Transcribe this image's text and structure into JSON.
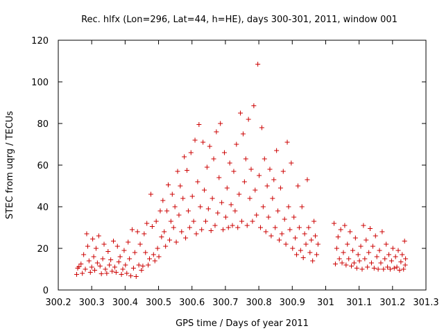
{
  "chart_data": {
    "type": "scatter",
    "title": "Rec. hlfx (Lon=296, Lat=44, h=HE), days 300-301, 2011, window 001",
    "xlabel": "GPS time / Days of year 2011",
    "ylabel": "STEC from uqrg / TECUs",
    "xlim": [
      300.2,
      301.3
    ],
    "ylim": [
      0,
      120
    ],
    "xticks": [
      300.2,
      300.3,
      300.4,
      300.5,
      300.6,
      300.7,
      300.8,
      300.9,
      301.0,
      301.1,
      301.2,
      301.3
    ],
    "xtick_labels": [
      "300.2",
      "300.3",
      "300.4",
      "300.5",
      "300.6",
      "300.7",
      "300.8",
      "300.9",
      "301",
      "301.1",
      "301.2",
      "301.3"
    ],
    "yticks": [
      0,
      20,
      40,
      60,
      80,
      100,
      120
    ],
    "ytick_labels": [
      "0",
      "20",
      "40",
      "60",
      "80",
      "100",
      "120"
    ],
    "grid": false,
    "marker": "+",
    "marker_color": "#cc0000",
    "series": [
      {
        "name": "STEC",
        "points": [
          [
            300.255,
            7.5
          ],
          [
            300.258,
            10.5
          ],
          [
            300.262,
            11.2
          ],
          [
            300.268,
            12.5
          ],
          [
            300.272,
            8.0
          ],
          [
            300.276,
            17.0
          ],
          [
            300.281,
            10.0
          ],
          [
            300.285,
            27.0
          ],
          [
            300.288,
            21.0
          ],
          [
            300.292,
            14.0
          ],
          [
            300.296,
            8.5
          ],
          [
            300.3,
            11.0
          ],
          [
            300.303,
            24.5
          ],
          [
            300.306,
            16.0
          ],
          [
            300.309,
            9.5
          ],
          [
            300.313,
            20.0
          ],
          [
            300.317,
            13.0
          ],
          [
            300.321,
            26.0
          ],
          [
            300.325,
            11.5
          ],
          [
            300.329,
            7.8
          ],
          [
            300.333,
            15.0
          ],
          [
            300.337,
            22.0
          ],
          [
            300.341,
            10.0
          ],
          [
            300.345,
            8.0
          ],
          [
            300.349,
            18.5
          ],
          [
            300.353,
            12.0
          ],
          [
            300.357,
            14.5
          ],
          [
            300.361,
            9.0
          ],
          [
            300.365,
            23.5
          ],
          [
            300.369,
            11.0
          ],
          [
            300.373,
            8.5
          ],
          [
            300.377,
            21.0
          ],
          [
            300.381,
            13.5
          ],
          [
            300.385,
            16.0
          ],
          [
            300.389,
            7.5
          ],
          [
            300.393,
            10.0
          ],
          [
            300.397,
            19.0
          ],
          [
            300.401,
            12.0
          ],
          [
            300.405,
            8.0
          ],
          [
            300.409,
            23.0
          ],
          [
            300.413,
            15.0
          ],
          [
            300.417,
            6.8
          ],
          [
            300.421,
            29.0
          ],
          [
            300.425,
            10.5
          ],
          [
            300.429,
            18.0
          ],
          [
            300.433,
            6.5
          ],
          [
            300.437,
            28.0
          ],
          [
            300.441,
            12.0
          ],
          [
            300.445,
            22.0
          ],
          [
            300.449,
            9.5
          ],
          [
            300.453,
            11.5
          ],
          [
            300.457,
            27.0
          ],
          [
            300.461,
            18.0
          ],
          [
            300.465,
            32.0
          ],
          [
            300.469,
            12.0
          ],
          [
            300.473,
            15.0
          ],
          [
            300.477,
            46.0
          ],
          [
            300.481,
            30.5
          ],
          [
            300.485,
            17.0
          ],
          [
            300.489,
            14.0
          ],
          [
            300.493,
            33.0
          ],
          [
            300.497,
            20.0
          ],
          [
            300.501,
            16.0
          ],
          [
            300.505,
            38.0
          ],
          [
            300.509,
            25.5
          ],
          [
            300.513,
            43.0
          ],
          [
            300.517,
            28.0
          ],
          [
            300.521,
            21.0
          ],
          [
            300.525,
            38.0
          ],
          [
            300.529,
            50.5
          ],
          [
            300.533,
            24.0
          ],
          [
            300.537,
            33.0
          ],
          [
            300.541,
            46.0
          ],
          [
            300.545,
            30.0
          ],
          [
            300.549,
            40.0
          ],
          [
            300.553,
            23.0
          ],
          [
            300.557,
            57.0
          ],
          [
            300.561,
            36.0
          ],
          [
            300.565,
            50.0
          ],
          [
            300.569,
            28.0
          ],
          [
            300.573,
            44.0
          ],
          [
            300.577,
            64.0
          ],
          [
            300.581,
            25.0
          ],
          [
            300.585,
            57.5
          ],
          [
            300.589,
            38.0
          ],
          [
            300.593,
            30.0
          ],
          [
            300.597,
            66.0
          ],
          [
            300.601,
            45.0
          ],
          [
            300.605,
            33.0
          ],
          [
            300.609,
            72.0
          ],
          [
            300.613,
            27.0
          ],
          [
            300.617,
            52.0
          ],
          [
            300.621,
            79.5
          ],
          [
            300.625,
            40.0
          ],
          [
            300.629,
            29.0
          ],
          [
            300.633,
            71.0
          ],
          [
            300.637,
            48.0
          ],
          [
            300.641,
            33.0
          ],
          [
            300.645,
            59.0
          ],
          [
            300.649,
            39.0
          ],
          [
            300.653,
            69.0
          ],
          [
            300.657,
            28.5
          ],
          [
            300.661,
            44.0
          ],
          [
            300.665,
            63.0
          ],
          [
            300.669,
            31.0
          ],
          [
            300.673,
            76.0
          ],
          [
            300.677,
            37.0
          ],
          [
            300.681,
            54.0
          ],
          [
            300.685,
            80.0
          ],
          [
            300.689,
            42.0
          ],
          [
            300.693,
            29.0
          ],
          [
            300.697,
            66.0
          ],
          [
            300.701,
            35.0
          ],
          [
            300.705,
            49.0
          ],
          [
            300.709,
            30.0
          ],
          [
            300.713,
            61.0
          ],
          [
            300.717,
            41.0
          ],
          [
            300.721,
            31.0
          ],
          [
            300.725,
            57.0
          ],
          [
            300.729,
            38.0
          ],
          [
            300.733,
            70.0
          ],
          [
            300.737,
            30.0
          ],
          [
            300.741,
            46.0
          ],
          [
            300.745,
            85.0
          ],
          [
            300.749,
            33.0
          ],
          [
            300.753,
            75.0
          ],
          [
            300.757,
            52.0
          ],
          [
            300.761,
            63.0
          ],
          [
            300.765,
            31.0
          ],
          [
            300.769,
            82.0
          ],
          [
            300.773,
            44.0
          ],
          [
            300.777,
            58.0
          ],
          [
            300.781,
            33.0
          ],
          [
            300.785,
            88.5
          ],
          [
            300.789,
            48.0
          ],
          [
            300.793,
            36.0
          ],
          [
            300.797,
            108.5
          ],
          [
            300.801,
            55.0
          ],
          [
            300.805,
            30.0
          ],
          [
            300.809,
            78.0
          ],
          [
            300.813,
            40.0
          ],
          [
            300.817,
            63.0
          ],
          [
            300.821,
            28.0
          ],
          [
            300.825,
            50.0
          ],
          [
            300.829,
            35.0
          ],
          [
            300.833,
            58.0
          ],
          [
            300.837,
            26.0
          ],
          [
            300.841,
            44.0
          ],
          [
            300.845,
            53.0
          ],
          [
            300.849,
            30.0
          ],
          [
            300.853,
            67.0
          ],
          [
            300.857,
            38.0
          ],
          [
            300.861,
            24.0
          ],
          [
            300.865,
            49.0
          ],
          [
            300.869,
            27.0
          ],
          [
            300.873,
            57.0
          ],
          [
            300.877,
            34.0
          ],
          [
            300.881,
            22.0
          ],
          [
            300.885,
            71.0
          ],
          [
            300.889,
            40.0
          ],
          [
            300.893,
            29.0
          ],
          [
            300.897,
            61.0
          ],
          [
            300.901,
            20.0
          ],
          [
            300.905,
            35.0
          ],
          [
            300.909,
            25.0
          ],
          [
            300.913,
            17.0
          ],
          [
            300.917,
            50.0
          ],
          [
            300.921,
            30.0
          ],
          [
            300.925,
            19.0
          ],
          [
            300.929,
            40.0
          ],
          [
            300.933,
            15.5
          ],
          [
            300.937,
            27.0
          ],
          [
            300.941,
            22.0
          ],
          [
            300.945,
            53.0
          ],
          [
            300.949,
            30.0
          ],
          [
            300.953,
            18.0
          ],
          [
            300.957,
            24.0
          ],
          [
            300.961,
            14.0
          ],
          [
            300.965,
            33.0
          ],
          [
            300.969,
            26.0
          ],
          [
            300.973,
            17.0
          ],
          [
            300.977,
            22.0
          ],
          [
            301.025,
            32.0
          ],
          [
            301.029,
            12.5
          ],
          [
            301.033,
            20.0
          ],
          [
            301.037,
            25.5
          ],
          [
            301.041,
            15.0
          ],
          [
            301.045,
            29.0
          ],
          [
            301.049,
            13.0
          ],
          [
            301.053,
            18.0
          ],
          [
            301.057,
            31.0
          ],
          [
            301.061,
            12.0
          ],
          [
            301.065,
            22.0
          ],
          [
            301.069,
            15.0
          ],
          [
            301.073,
            28.0
          ],
          [
            301.077,
            11.5
          ],
          [
            301.081,
            19.0
          ],
          [
            301.085,
            13.0
          ],
          [
            301.089,
            25.0
          ],
          [
            301.093,
            10.5
          ],
          [
            301.097,
            17.0
          ],
          [
            301.101,
            14.0
          ],
          [
            301.105,
            21.0
          ],
          [
            301.109,
            10.0
          ],
          [
            301.113,
            31.0
          ],
          [
            301.117,
            15.0
          ],
          [
            301.121,
            24.0
          ],
          [
            301.125,
            11.0
          ],
          [
            301.129,
            18.0
          ],
          [
            301.133,
            29.5
          ],
          [
            301.137,
            13.0
          ],
          [
            301.141,
            21.0
          ],
          [
            301.145,
            10.5
          ],
          [
            301.149,
            26.0
          ],
          [
            301.153,
            16.0
          ],
          [
            301.157,
            10.0
          ],
          [
            301.161,
            19.0
          ],
          [
            301.165,
            13.0
          ],
          [
            301.169,
            28.0
          ],
          [
            301.173,
            10.0
          ],
          [
            301.177,
            15.0
          ],
          [
            301.181,
            22.0
          ],
          [
            301.185,
            11.0
          ],
          [
            301.189,
            17.0
          ],
          [
            301.193,
            10.0
          ],
          [
            301.197,
            14.0
          ],
          [
            301.201,
            20.0
          ],
          [
            301.205,
            10.5
          ],
          [
            301.209,
            16.0
          ],
          [
            301.213,
            11.0
          ],
          [
            301.217,
            19.0
          ],
          [
            301.221,
            9.5
          ],
          [
            301.225,
            13.5
          ],
          [
            301.229,
            17.0
          ],
          [
            301.233,
            10.0
          ],
          [
            301.236,
            23.5
          ],
          [
            301.238,
            12.0
          ],
          [
            301.239,
            15.0
          ]
        ]
      }
    ]
  }
}
